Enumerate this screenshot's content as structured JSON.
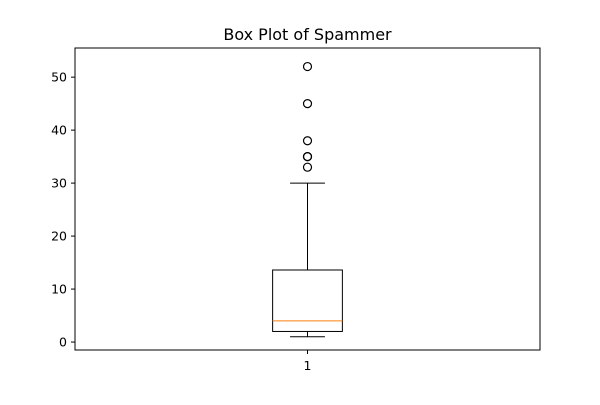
{
  "chart_data": {
    "type": "box",
    "title": "Box Plot of Spammer",
    "xlabel": "",
    "ylabel": "",
    "categories": [
      "1"
    ],
    "ylim": [
      -1.5,
      55.5
    ],
    "xlim": [
      0.5,
      1.5
    ],
    "yticks": [
      0,
      10,
      20,
      30,
      40,
      50
    ],
    "grid": false,
    "boxes": [
      {
        "category": "1",
        "whisker_low": 1,
        "q1": 2,
        "median": 4,
        "q3": 13.6,
        "whisker_high": 30,
        "outliers": [
          33,
          35,
          35,
          38,
          45,
          52
        ]
      }
    ],
    "colors": {
      "box": "#000000",
      "median": "#ff7f0e",
      "whisker": "#000000",
      "outlier": "#000000"
    }
  }
}
